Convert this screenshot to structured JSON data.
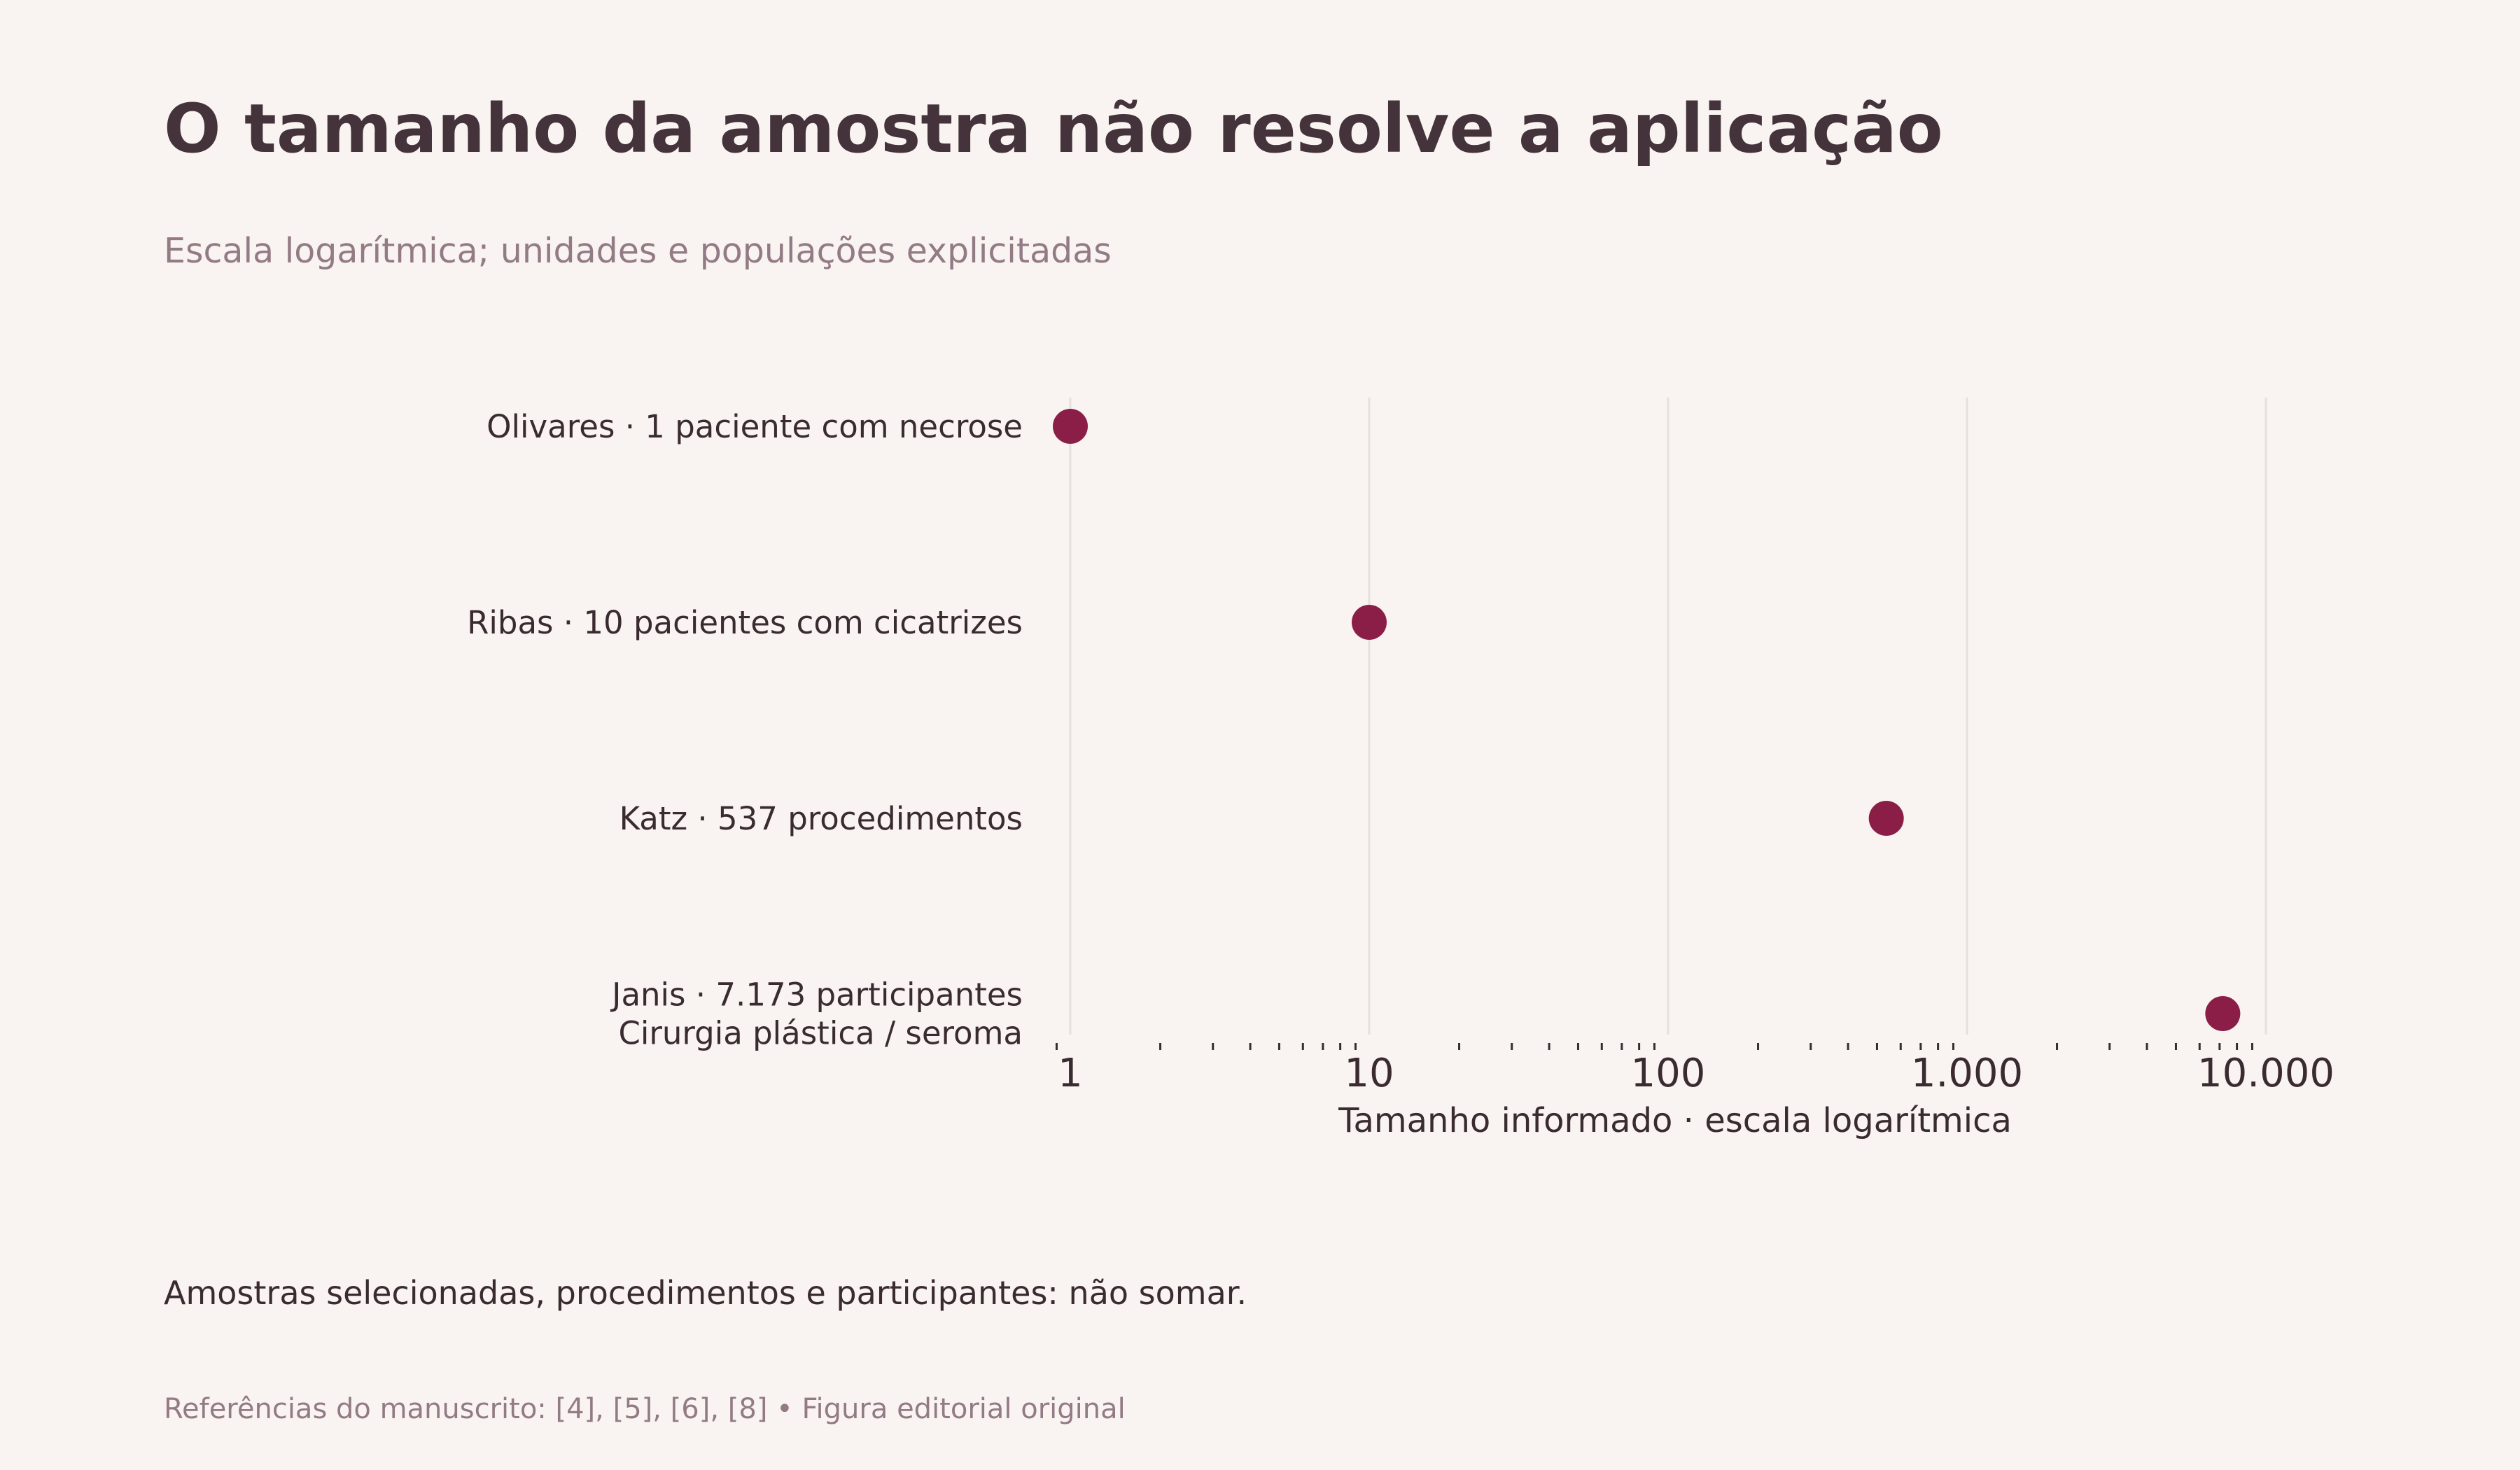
{
  "header": {
    "title": "O tamanho da amostra não resolve a aplicação",
    "subtitle": "Escala logarítmica; unidades e populações explicitadas"
  },
  "footer": {
    "note": "Amostras selecionadas, procedimentos e participantes: não somar.",
    "source": "Referências do manuscrito: [4], [5], [6], [8]  •  Figura editorial original"
  },
  "colors": {
    "background": "#f9f4f1",
    "dot": "#8b1e47",
    "grid": "#e6e0dd",
    "text": "#3a2b31",
    "muted": "#937b86"
  },
  "chart_data": {
    "type": "scatter",
    "orientation": "horizontal-dot",
    "categories": [
      [
        "Olivares · 1 paciente com necrose"
      ],
      [
        "Ribas · 10 pacientes com cicatrizes"
      ],
      [
        "Katz · 537 procedimentos"
      ],
      [
        "Janis · 7.173 participantes",
        "Cirurgia plástica / seroma"
      ]
    ],
    "values": [
      1,
      10,
      537,
      7173
    ],
    "xlabel": "Tamanho informado · escala logarítmica",
    "xscale": "log",
    "xlim": [
      0.9,
      11000
    ],
    "ticks": [
      1,
      10,
      100,
      1000,
      10000
    ],
    "tick_labels": [
      "1",
      "10",
      "100",
      "1.000",
      "10.000"
    ],
    "grid": true
  }
}
